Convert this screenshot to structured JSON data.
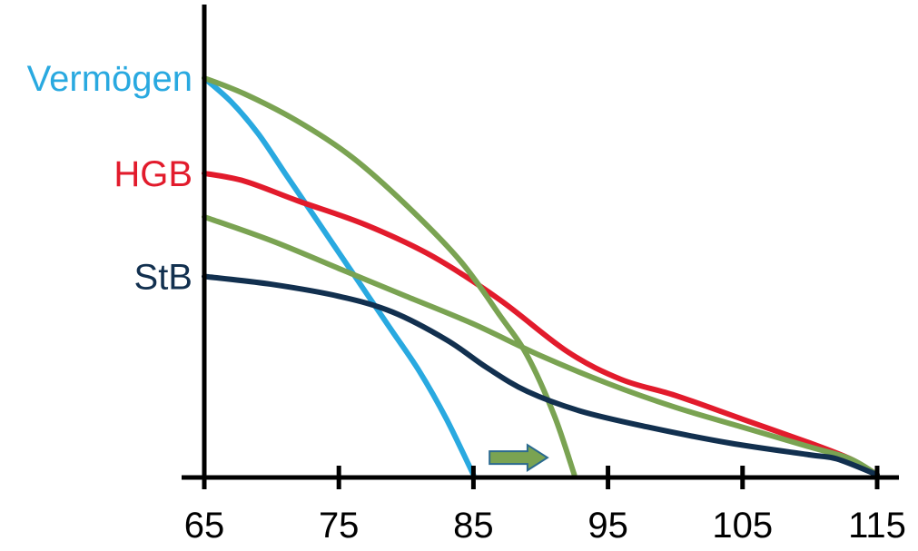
{
  "chart_data": {
    "type": "line",
    "xlim": [
      65,
      115
    ],
    "x_ticks": [
      "65",
      "75",
      "85",
      "95",
      "105",
      "115"
    ],
    "y_labels": [
      {
        "text": "Vermögen",
        "color": "#29a9e0",
        "y": 100
      },
      {
        "text": "HGB",
        "color": "#e21b2c",
        "y": 76
      },
      {
        "text": "StB",
        "color": "#12304f",
        "y": 50
      }
    ],
    "series": [
      {
        "name": "Vermögen",
        "color": "#29a9e0",
        "points": [
          [
            65,
            100
          ],
          [
            67,
            94
          ],
          [
            69,
            86
          ],
          [
            71,
            76
          ],
          [
            73,
            66
          ],
          [
            75,
            56
          ],
          [
            77,
            46
          ],
          [
            79,
            36
          ],
          [
            81,
            26
          ],
          [
            83,
            14
          ],
          [
            85,
            0
          ]
        ]
      },
      {
        "name": "HGB",
        "color": "#e21b2c",
        "points": [
          [
            65,
            76
          ],
          [
            68,
            74
          ],
          [
            72,
            69
          ],
          [
            77,
            63
          ],
          [
            82,
            55
          ],
          [
            87,
            44
          ],
          [
            92,
            31
          ],
          [
            96,
            24
          ],
          [
            100,
            20
          ],
          [
            105,
            14
          ],
          [
            110,
            8
          ],
          [
            113,
            4
          ],
          [
            115,
            0
          ]
        ]
      },
      {
        "name": "",
        "color": "#7aa352",
        "points": [
          [
            65,
            100
          ],
          [
            68,
            96
          ],
          [
            72,
            89
          ],
          [
            76,
            80
          ],
          [
            80,
            68
          ],
          [
            84,
            54
          ],
          [
            87,
            40
          ],
          [
            89,
            30
          ],
          [
            91,
            15
          ],
          [
            92.5,
            0
          ]
        ]
      },
      {
        "name": "",
        "color": "#7aa352",
        "points": [
          [
            65,
            65
          ],
          [
            70,
            59
          ],
          [
            75,
            52
          ],
          [
            80,
            45
          ],
          [
            85,
            38
          ],
          [
            90,
            30
          ],
          [
            95,
            23
          ],
          [
            100,
            17
          ],
          [
            105,
            12
          ],
          [
            110,
            7
          ],
          [
            113,
            4
          ],
          [
            115,
            0
          ]
        ]
      },
      {
        "name": "StB",
        "color": "#12304f",
        "points": [
          [
            65,
            50
          ],
          [
            70,
            48
          ],
          [
            75,
            45
          ],
          [
            79,
            41
          ],
          [
            83,
            34
          ],
          [
            86,
            27
          ],
          [
            89,
            21
          ],
          [
            93,
            16
          ],
          [
            98,
            12
          ],
          [
            104,
            8
          ],
          [
            110,
            5
          ],
          [
            112,
            4
          ],
          [
            115,
            0
          ]
        ]
      }
    ],
    "annotation": {
      "type": "arrow",
      "color": "#7aa352",
      "from": [
        86.2,
        5
      ],
      "to": [
        90.5,
        5
      ]
    }
  }
}
